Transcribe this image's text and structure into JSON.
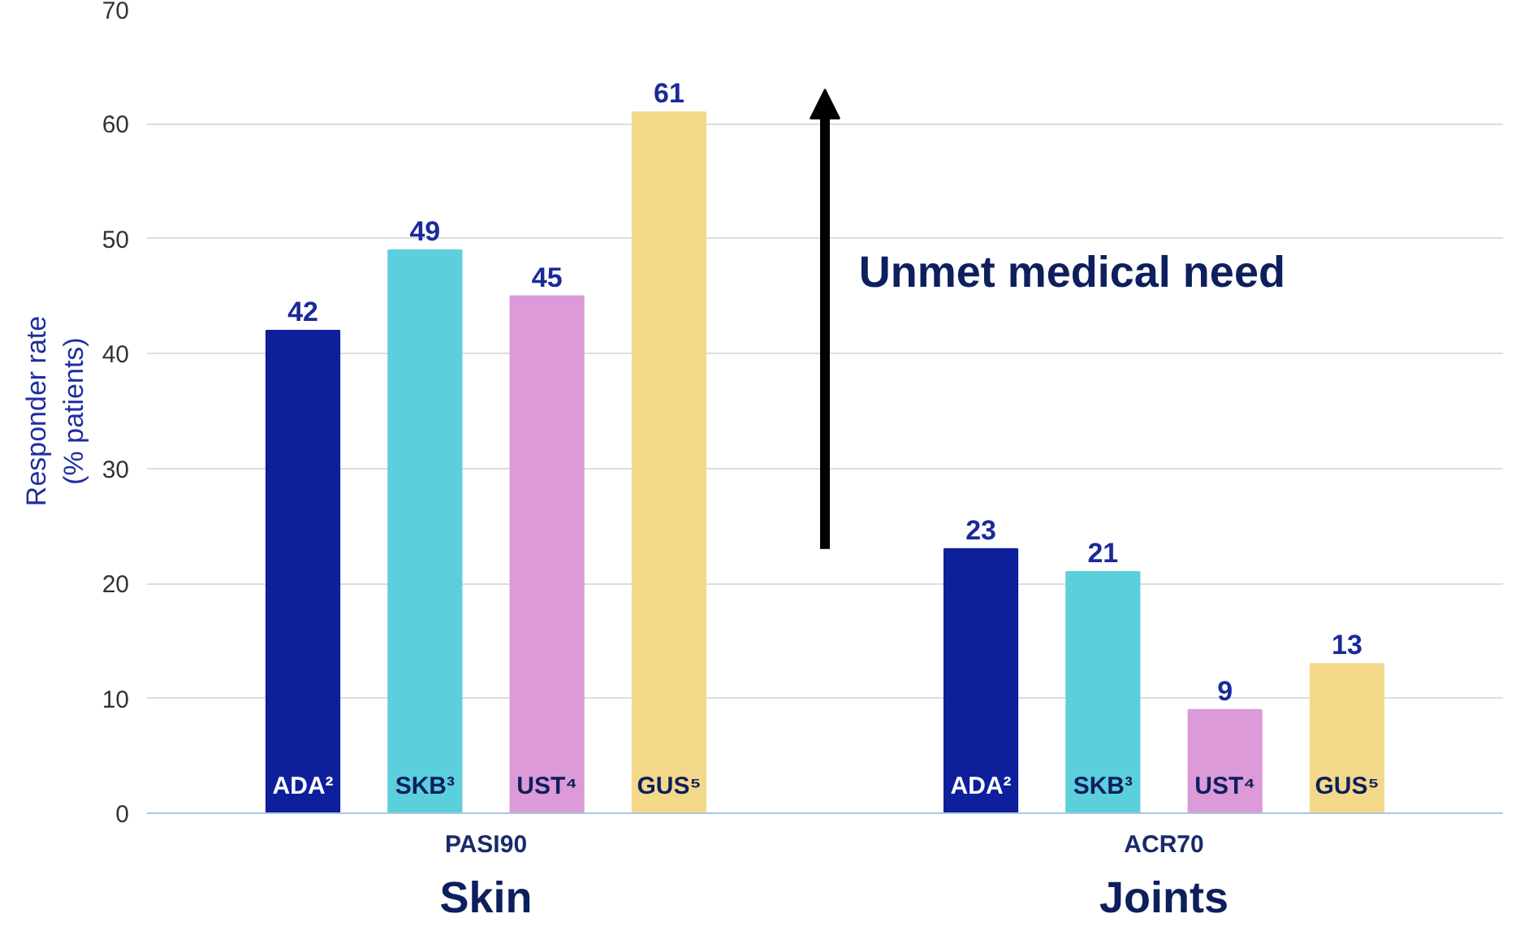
{
  "chart_data": {
    "type": "bar",
    "categories": [
      "PASI90",
      "ACR70"
    ],
    "ylabel": "Responder rate\n(% patients)",
    "series": [
      {
        "name": "ADA²",
        "color": "#0d1f9a",
        "values": [
          42,
          23
        ]
      },
      {
        "name": "SKB³",
        "color": "#5ccfdc",
        "values": [
          49,
          21
        ]
      },
      {
        "name": "UST⁴",
        "color": "#dc9ad8",
        "values": [
          45,
          9
        ]
      },
      {
        "name": "GUS⁵",
        "color": "#f5d98a",
        "values": [
          61,
          13
        ]
      }
    ],
    "ylim": [
      0,
      70
    ],
    "yticks": [
      0,
      10,
      20,
      30,
      40,
      50,
      60,
      70
    ],
    "grid": "y",
    "data_labels": true,
    "annotations": [
      "Skin",
      "Joints",
      "Unmet medical need"
    ]
  }
}
